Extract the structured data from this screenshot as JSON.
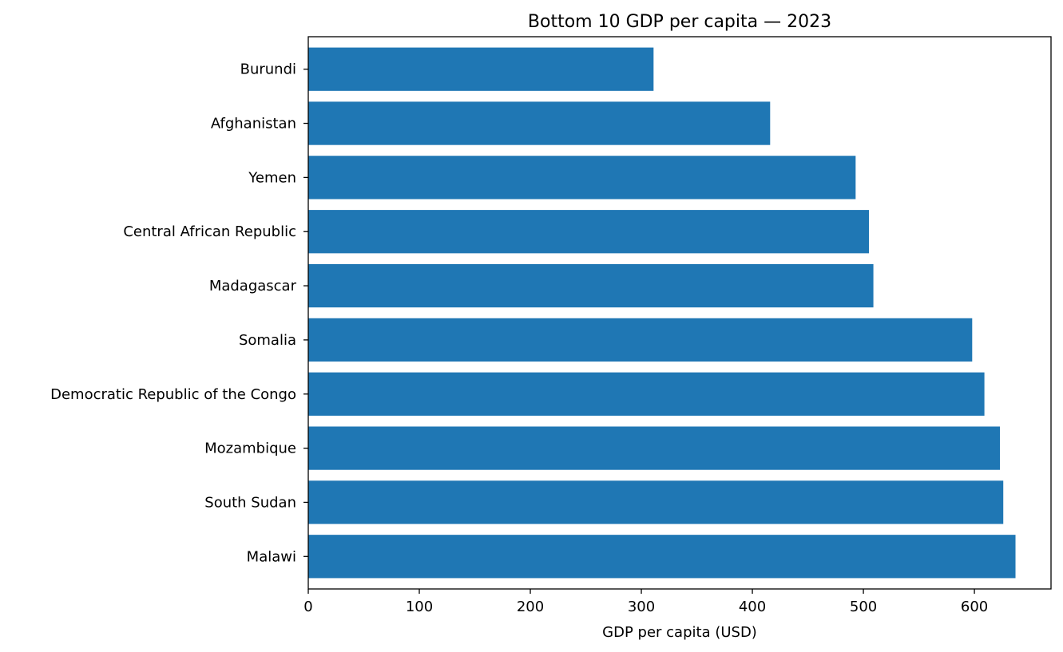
{
  "chart_data": {
    "type": "bar",
    "orientation": "horizontal",
    "title": "Bottom 10 GDP per capita — 2023",
    "xlabel": "GDP per capita (USD)",
    "ylabel": "",
    "categories": [
      "Burundi",
      "Afghanistan",
      "Yemen",
      "Central African Republic",
      "Madagascar",
      "Somalia",
      "Democratic Republic of the Congo",
      "Mozambique",
      "South Sudan",
      "Malawi"
    ],
    "values": [
      311,
      416,
      493,
      505,
      509,
      598,
      609,
      623,
      626,
      637
    ],
    "xlim": [
      0,
      669
    ],
    "xticks": [
      0,
      100,
      200,
      300,
      400,
      500,
      600
    ],
    "grid": false,
    "bar_color": "#1f77b4"
  }
}
